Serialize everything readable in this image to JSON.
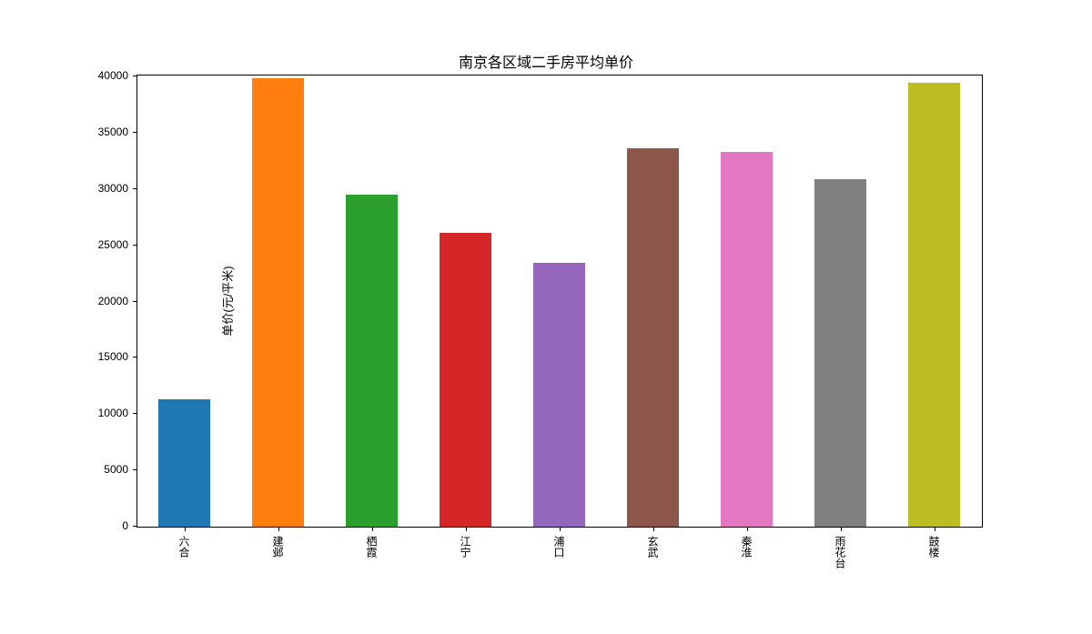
{
  "chart": {
    "type": "bar",
    "title": "南京各区域二手房平均单价",
    "title_fontsize": 16,
    "ylabel": "单价(元/平米)",
    "label_fontsize": 13,
    "background_color": "#ffffff",
    "border_color": "#000000",
    "ylim": [
      0,
      40000
    ],
    "ytick_step": 5000,
    "yticks": [
      0,
      5000,
      10000,
      15000,
      20000,
      25000,
      30000,
      35000,
      40000
    ],
    "categories": [
      "六合",
      "建邺",
      "栖霞",
      "江宁",
      "浦口",
      "玄武",
      "秦淮",
      "雨花台",
      "鼓楼"
    ],
    "values": [
      11300,
      39800,
      29500,
      26100,
      23400,
      33600,
      33300,
      30900,
      39400
    ],
    "bar_colors": [
      "#1f77b4",
      "#ff7f0e",
      "#2ca02c",
      "#d62728",
      "#9467bd",
      "#8c564b",
      "#e377c2",
      "#7f7f7f",
      "#bcbd22"
    ],
    "bar_width": 0.55,
    "tick_fontsize": 12,
    "xtick_rotation": 90
  }
}
